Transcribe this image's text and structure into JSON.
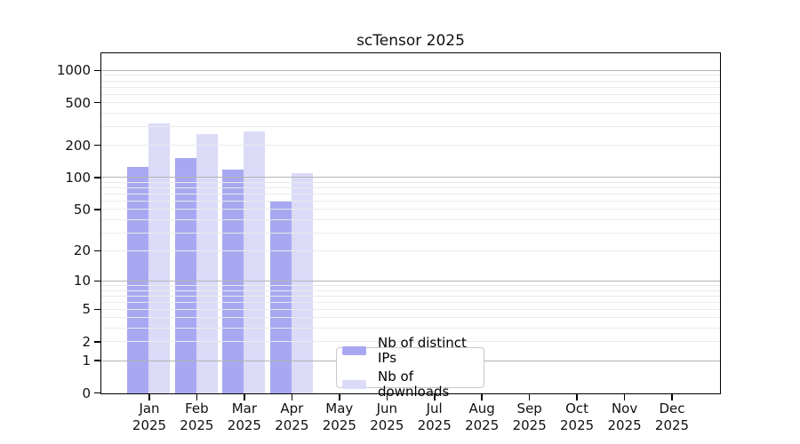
{
  "chart": {
    "title": "scTensor 2025",
    "legend": {
      "items": [
        {
          "label": "Nb of distinct IPs",
          "color": "#a8a8f2"
        },
        {
          "label": "Nb of downloads",
          "color": "#dbdbf8"
        }
      ]
    }
  },
  "chart_data": {
    "type": "bar",
    "title": "scTensor 2025",
    "categories": [
      "Jan",
      "Feb",
      "Mar",
      "Apr",
      "May",
      "Jun",
      "Jul",
      "Aug",
      "Sep",
      "Oct",
      "Nov",
      "Dec"
    ],
    "category_year": "2025",
    "series": [
      {
        "name": "Nb of distinct IPs",
        "color": "#a8a8f2",
        "values": [
          128,
          154,
          120,
          60,
          0,
          0,
          0,
          0,
          0,
          0,
          0,
          0
        ]
      },
      {
        "name": "Nb of downloads",
        "color": "#dbdbf8",
        "values": [
          322,
          260,
          273,
          110,
          0,
          0,
          0,
          0,
          0,
          0,
          0,
          0
        ]
      }
    ],
    "xlabel": "",
    "ylabel": "",
    "yscale": "log1p",
    "ylim": [
      0,
      1430
    ],
    "y_ticks": [
      0,
      1,
      2,
      5,
      10,
      20,
      50,
      100,
      200,
      500,
      1000
    ],
    "y_major_gridlines": [
      1,
      10,
      100,
      1000
    ],
    "grid": true,
    "legend_position": "lower center"
  }
}
